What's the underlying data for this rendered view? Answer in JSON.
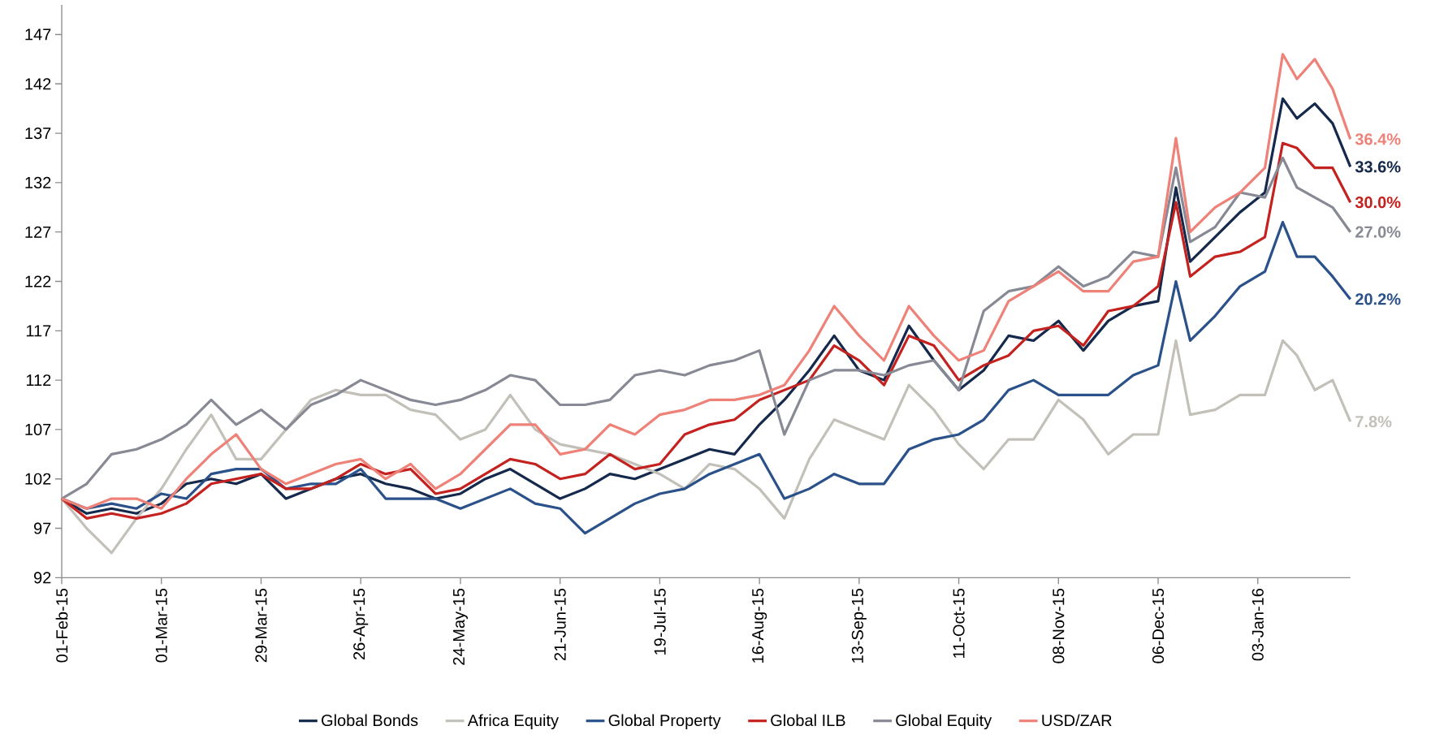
{
  "chart_data": {
    "type": "line",
    "x": [
      "2015-02-01",
      "2015-02-08",
      "2015-02-15",
      "2015-02-22",
      "2015-03-01",
      "2015-03-08",
      "2015-03-15",
      "2015-03-22",
      "2015-03-29",
      "2015-04-05",
      "2015-04-12",
      "2015-04-19",
      "2015-04-26",
      "2015-05-03",
      "2015-05-10",
      "2015-05-17",
      "2015-05-24",
      "2015-05-31",
      "2015-06-07",
      "2015-06-14",
      "2015-06-21",
      "2015-06-28",
      "2015-07-05",
      "2015-07-12",
      "2015-07-19",
      "2015-07-26",
      "2015-08-02",
      "2015-08-09",
      "2015-08-16",
      "2015-08-23",
      "2015-08-30",
      "2015-09-06",
      "2015-09-13",
      "2015-09-20",
      "2015-09-27",
      "2015-10-04",
      "2015-10-11",
      "2015-10-18",
      "2015-10-25",
      "2015-11-01",
      "2015-11-08",
      "2015-11-15",
      "2015-11-22",
      "2015-11-29",
      "2015-12-06",
      "2015-12-11",
      "2015-12-15",
      "2015-12-22",
      "2015-12-29",
      "2016-01-05",
      "2016-01-10",
      "2016-01-14",
      "2016-01-19",
      "2016-01-24",
      "2016-01-29"
    ],
    "series": [
      {
        "name": "Global Bonds",
        "color": "#14294b",
        "values": [
          100,
          98.5,
          99,
          98.5,
          99.5,
          101.5,
          102,
          101.5,
          102.5,
          100,
          101,
          102,
          102.5,
          101.5,
          101,
          100,
          100.5,
          102,
          103,
          101.5,
          100,
          101,
          102.5,
          102,
          103,
          104,
          105,
          104.5,
          107.5,
          110,
          113,
          116.5,
          113,
          112,
          117.5,
          114,
          111,
          113,
          116.5,
          116,
          118,
          115,
          118,
          119.5,
          120,
          131.5,
          124,
          126.5,
          129,
          131,
          140.5,
          138.5,
          140,
          138,
          133.6
        ]
      },
      {
        "name": "Africa Equity",
        "color": "#c3c0b9",
        "values": [
          100,
          97,
          94.5,
          98,
          101,
          105,
          108.5,
          104,
          104,
          107,
          110,
          111,
          110.5,
          110.5,
          109,
          108.5,
          106,
          107,
          110.5,
          107,
          105.5,
          105,
          104.5,
          103.5,
          102.5,
          101,
          103.5,
          103,
          101,
          98,
          104,
          108,
          107,
          106,
          111.5,
          109,
          105.5,
          103,
          106,
          106,
          110,
          108,
          104.5,
          106.5,
          106.5,
          116,
          108.5,
          109,
          110.5,
          110.5,
          116,
          114.5,
          111,
          112,
          107.8
        ]
      },
      {
        "name": "Global Property",
        "color": "#2a5189",
        "values": [
          100,
          99,
          99.5,
          99,
          100.5,
          100,
          102.5,
          103,
          103,
          101,
          101.5,
          101.5,
          103,
          100,
          100,
          100,
          99,
          100,
          101,
          99.5,
          99,
          96.5,
          98,
          99.5,
          100.5,
          101,
          102.5,
          103.5,
          104.5,
          100,
          101,
          102.5,
          101.5,
          101.5,
          105,
          106,
          106.5,
          108,
          111,
          112,
          110.5,
          110.5,
          110.5,
          112.5,
          113.5,
          122,
          116,
          118.5,
          121.5,
          123,
          128,
          124.5,
          124.5,
          122.5,
          120.2
        ]
      },
      {
        "name": "Global ILB",
        "color": "#c4221f",
        "values": [
          100,
          98,
          98.5,
          98,
          98.5,
          99.5,
          101.5,
          102,
          102.5,
          101,
          101,
          102,
          103.5,
          102.5,
          103,
          100.5,
          101,
          102.5,
          104,
          103.5,
          102,
          102.5,
          104.5,
          103,
          103.5,
          106.5,
          107.5,
          108,
          110,
          111,
          112,
          115.5,
          114,
          111.5,
          116.5,
          115.5,
          112,
          113.5,
          114.5,
          117,
          117.5,
          115.5,
          119,
          119.5,
          121.5,
          130,
          122.5,
          124.5,
          125,
          126.5,
          136,
          135.5,
          133.5,
          133.5,
          130.0
        ]
      },
      {
        "name": "Global Equity",
        "color": "#878a94",
        "values": [
          100,
          101.5,
          104.5,
          105,
          106,
          107.5,
          110,
          107.5,
          109,
          107,
          109.5,
          110.5,
          112,
          111,
          110,
          109.5,
          110,
          111,
          112.5,
          112,
          109.5,
          109.5,
          110,
          112.5,
          113,
          112.5,
          113.5,
          114,
          115,
          106.5,
          112,
          113,
          113,
          112.5,
          113.5,
          114,
          111,
          119,
          121,
          121.5,
          123.5,
          121.5,
          122.5,
          125,
          124.5,
          133.5,
          126,
          127.5,
          131,
          130.5,
          134.5,
          131.5,
          130.5,
          129.5,
          127.0
        ]
      },
      {
        "name": "USD/ZAR",
        "color": "#ee8178",
        "values": [
          100,
          99,
          100,
          100,
          99,
          102,
          104.5,
          106.5,
          103,
          101.5,
          102.5,
          103.5,
          104,
          102,
          103.5,
          101,
          102.5,
          105,
          107.5,
          107.5,
          104.5,
          105,
          107.5,
          106.5,
          108.5,
          109,
          110,
          110,
          110.5,
          111.5,
          115,
          119.5,
          116.5,
          114,
          119.5,
          116.5,
          114,
          115,
          120,
          121.5,
          123,
          121,
          121,
          124,
          124.5,
          136.5,
          127,
          129.5,
          131,
          133.5,
          145,
          142.5,
          144.5,
          141.5,
          136.4
        ]
      }
    ],
    "xlim": [
      "2015-02-01",
      "2016-01-29"
    ],
    "xticks": [
      {
        "value": "2015-02-01",
        "label": "01-Feb-15"
      },
      {
        "value": "2015-03-01",
        "label": "01-Mar-15"
      },
      {
        "value": "2015-03-29",
        "label": "29-Mar-15"
      },
      {
        "value": "2015-04-26",
        "label": "26-Apr-15"
      },
      {
        "value": "2015-05-24",
        "label": "24-May-15"
      },
      {
        "value": "2015-06-21",
        "label": "21-Jun-15"
      },
      {
        "value": "2015-07-19",
        "label": "19-Jul-15"
      },
      {
        "value": "2015-08-16",
        "label": "16-Aug-15"
      },
      {
        "value": "2015-09-13",
        "label": "13-Sep-15"
      },
      {
        "value": "2015-10-11",
        "label": "11-Oct-15"
      },
      {
        "value": "2015-11-08",
        "label": "08-Nov-15"
      },
      {
        "value": "2015-12-06",
        "label": "06-Dec-15"
      },
      {
        "value": "2016-01-03",
        "label": "03-Jan-16"
      }
    ],
    "ylim": [
      92,
      150
    ],
    "yticks": [
      92,
      97,
      102,
      107,
      112,
      117,
      122,
      127,
      132,
      137,
      142,
      147
    ],
    "annotations": [
      {
        "text": "33.6%",
        "x": "2016-01-29",
        "y": 133.6
      },
      {
        "text": "7.8%",
        "x": "2016-01-29",
        "y": 107.8
      },
      {
        "text": "20.2%",
        "x": "2016-01-29",
        "y": 120.2
      },
      {
        "text": "30.0%",
        "x": "2016-01-29",
        "y": 130.0
      },
      {
        "text": "27.0%",
        "x": "2016-01-29",
        "y": 127.0
      },
      {
        "text": "36.4%",
        "x": "2016-01-29",
        "y": 136.4
      }
    ],
    "grid": false,
    "legend": "bottom",
    "marker": "none",
    "line_style": "solid"
  }
}
